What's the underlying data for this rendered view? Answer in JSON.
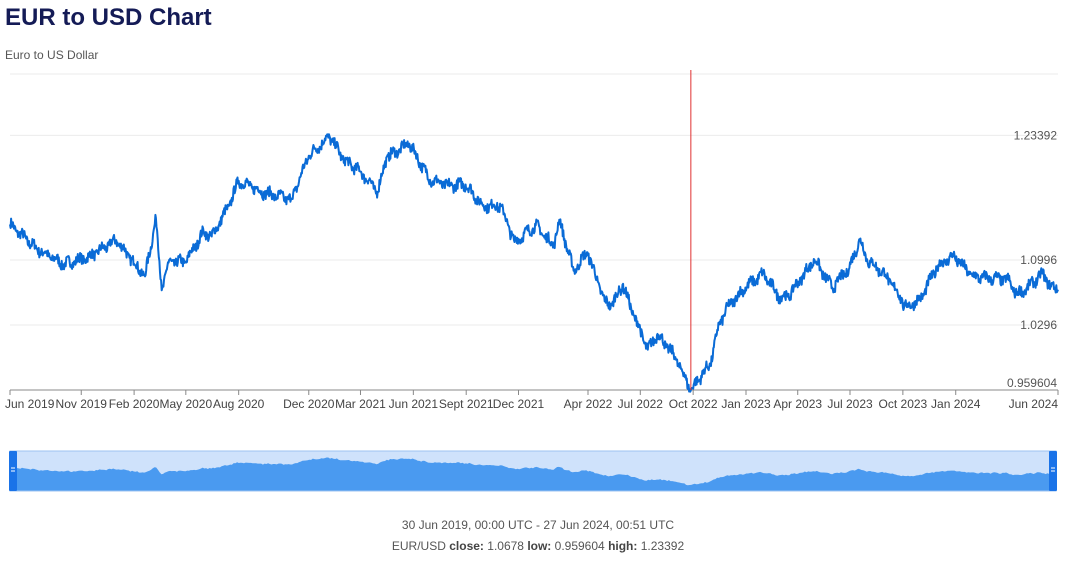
{
  "header": {
    "title": "EUR to USD Chart",
    "subtitle": "Euro to US Dollar"
  },
  "colors": {
    "line": "#0a6bd6",
    "navigator_fill": "#4a9af0",
    "navigator_bg": "#cfe2fb",
    "crosshair": "#e03030",
    "handle": "#1a73e8",
    "grid": "#ebebeb",
    "title": "#141b56"
  },
  "chart_data": {
    "type": "line",
    "title": "EUR to USD Chart",
    "subtitle": "Euro to US Dollar",
    "series": [
      {
        "name": "EUR/USD",
        "x": [
          "2019-06-30",
          "2019-08-15",
          "2019-10-01",
          "2019-11-15",
          "2020-01-01",
          "2020-02-20",
          "2020-03-05",
          "2020-03-10",
          "2020-03-20",
          "2020-04-01",
          "2020-05-01",
          "2020-06-01",
          "2020-06-15",
          "2020-07-15",
          "2020-08-01",
          "2020-09-15",
          "2020-11-01",
          "2020-12-01",
          "2021-01-06",
          "2021-02-01",
          "2021-03-01",
          "2021-03-31",
          "2021-04-15",
          "2021-05-25",
          "2021-06-30",
          "2021-07-31",
          "2021-08-31",
          "2021-09-30",
          "2021-10-31",
          "2021-11-24",
          "2021-12-31",
          "2022-01-31",
          "2022-02-10",
          "2022-03-07",
          "2022-03-31",
          "2022-04-30",
          "2022-05-12",
          "2022-05-31",
          "2022-06-15",
          "2022-07-14",
          "2022-07-31",
          "2022-08-31",
          "2022-09-27",
          "2022-10-15",
          "2022-10-31",
          "2022-11-15",
          "2022-12-01",
          "2022-12-31",
          "2023-01-31",
          "2023-02-28",
          "2023-03-15",
          "2023-04-30",
          "2023-05-31",
          "2023-06-30",
          "2023-07-18",
          "2023-07-31",
          "2023-08-31",
          "2023-09-30",
          "2023-10-03",
          "2023-10-31",
          "2023-11-30",
          "2023-12-28",
          "2024-01-31",
          "2024-02-29",
          "2024-03-31",
          "2024-04-16",
          "2024-04-30",
          "2024-05-31",
          "2024-06-15",
          "2024-06-27"
        ],
        "values": [
          1.138,
          1.112,
          1.095,
          1.103,
          1.121,
          1.082,
          1.128,
          1.145,
          1.067,
          1.097,
          1.098,
          1.13,
          1.125,
          1.158,
          1.185,
          1.172,
          1.165,
          1.212,
          1.233,
          1.207,
          1.195,
          1.173,
          1.21,
          1.225,
          1.186,
          1.18,
          1.181,
          1.158,
          1.158,
          1.119,
          1.137,
          1.115,
          1.143,
          1.088,
          1.108,
          1.055,
          1.051,
          1.073,
          1.048,
          1.003,
          1.02,
          0.995,
          0.9596,
          0.975,
          0.988,
          1.03,
          1.05,
          1.07,
          1.085,
          1.06,
          1.06,
          1.1,
          1.07,
          1.091,
          1.122,
          1.1,
          1.084,
          1.057,
          1.048,
          1.057,
          1.093,
          1.104,
          1.082,
          1.08,
          1.079,
          1.063,
          1.067,
          1.085,
          1.071,
          1.0678
        ]
      }
    ],
    "x_tick_labels": [
      "Jun 2019",
      "Nov 2019",
      "Feb 2020",
      "May 2020",
      "Aug 2020",
      "Dec 2020",
      "Mar 2021",
      "Jun 2021",
      "Sept 2021",
      "Dec 2021",
      "Apr 2022",
      "Jul 2022",
      "Oct 2022",
      "Jan 2023",
      "Apr 2023",
      "Jul 2023",
      "Oct 2023",
      "Jan 2024",
      "Jun 2024"
    ],
    "x_tick_dates": [
      "2019-06-30",
      "2019-11-01",
      "2020-02-01",
      "2020-05-01",
      "2020-08-01",
      "2020-12-01",
      "2021-03-01",
      "2021-06-01",
      "2021-09-01",
      "2021-12-01",
      "2022-04-01",
      "2022-07-01",
      "2022-10-01",
      "2023-01-01",
      "2023-04-01",
      "2023-07-01",
      "2023-10-01",
      "2024-01-01",
      "2024-06-27"
    ],
    "y_tick_labels": [
      "1.23392",
      "1.0996",
      "1.0296",
      "0.959604"
    ],
    "y_tick_values": [
      1.23392,
      1.0996,
      1.0296,
      0.959604
    ],
    "xlim": [
      "2019-06-30",
      "2024-06-27"
    ],
    "ylim": [
      0.959604,
      1.3
    ],
    "grid": true,
    "crosshair_date": "2022-09-27"
  },
  "footer": {
    "range": "30 Jun 2019, 00:00 UTC - 27 Jun 2024, 00:51 UTC",
    "pair": "EUR/USD",
    "close_label": "close:",
    "close_value": "1.0678",
    "low_label": "low:",
    "low_value": "0.959604",
    "high_label": "high:",
    "high_value": "1.23392"
  }
}
